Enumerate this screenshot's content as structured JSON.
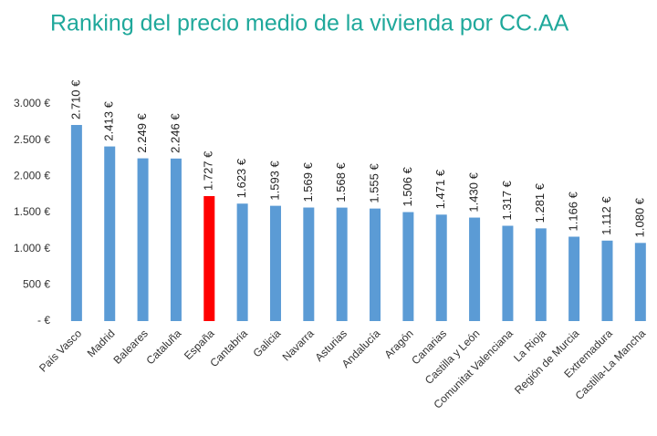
{
  "chart_data": {
    "type": "bar",
    "title": "Ranking del precio medio de la vivienda por CC.AA",
    "categories": [
      "País Vasco",
      "Madrid",
      "Baleares",
      "Cataluña",
      "España",
      "Cantabria",
      "Galicia",
      "Navarra",
      "Asturias",
      "Andalucía",
      "Aragón",
      "Canarias",
      "Castilla y León",
      "Comunitat Valenciana",
      "La Rioja",
      "Región de Murcia",
      "Extremadura",
      "Castilla-La Mancha"
    ],
    "values": [
      2710,
      2413,
      2249,
      2246,
      1727,
      1623,
      1593,
      1569,
      1568,
      1555,
      1506,
      1471,
      1430,
      1317,
      1281,
      1166,
      1112,
      1080
    ],
    "value_labels": [
      "2.710 €",
      "2.413 €",
      "2.249 €",
      "2.246 €",
      "1.727 €",
      "1.623 €",
      "1.593 €",
      "1.569 €",
      "1.568 €",
      "1.555 €",
      "1.506 €",
      "1.471 €",
      "1.430 €",
      "1.317 €",
      "1.281 €",
      "1.166 €",
      "1.112 €",
      "1.080 €"
    ],
    "colors": [
      "#5b9bd5",
      "#5b9bd5",
      "#5b9bd5",
      "#5b9bd5",
      "#ff0000",
      "#5b9bd5",
      "#5b9bd5",
      "#5b9bd5",
      "#5b9bd5",
      "#5b9bd5",
      "#5b9bd5",
      "#5b9bd5",
      "#5b9bd5",
      "#5b9bd5",
      "#5b9bd5",
      "#5b9bd5",
      "#5b9bd5",
      "#5b9bd5"
    ],
    "ylim": [
      0,
      3000
    ],
    "yticks": [
      {
        "value": 0,
        "label": "-   €"
      },
      {
        "value": 500,
        "label": "500 €"
      },
      {
        "value": 1000,
        "label": "1.000 €"
      },
      {
        "value": 1500,
        "label": "1.500 €"
      },
      {
        "value": 2000,
        "label": "2.000 €"
      },
      {
        "value": 2500,
        "label": "2.500 €"
      },
      {
        "value": 3000,
        "label": "3.000 €"
      }
    ],
    "grid": false
  }
}
